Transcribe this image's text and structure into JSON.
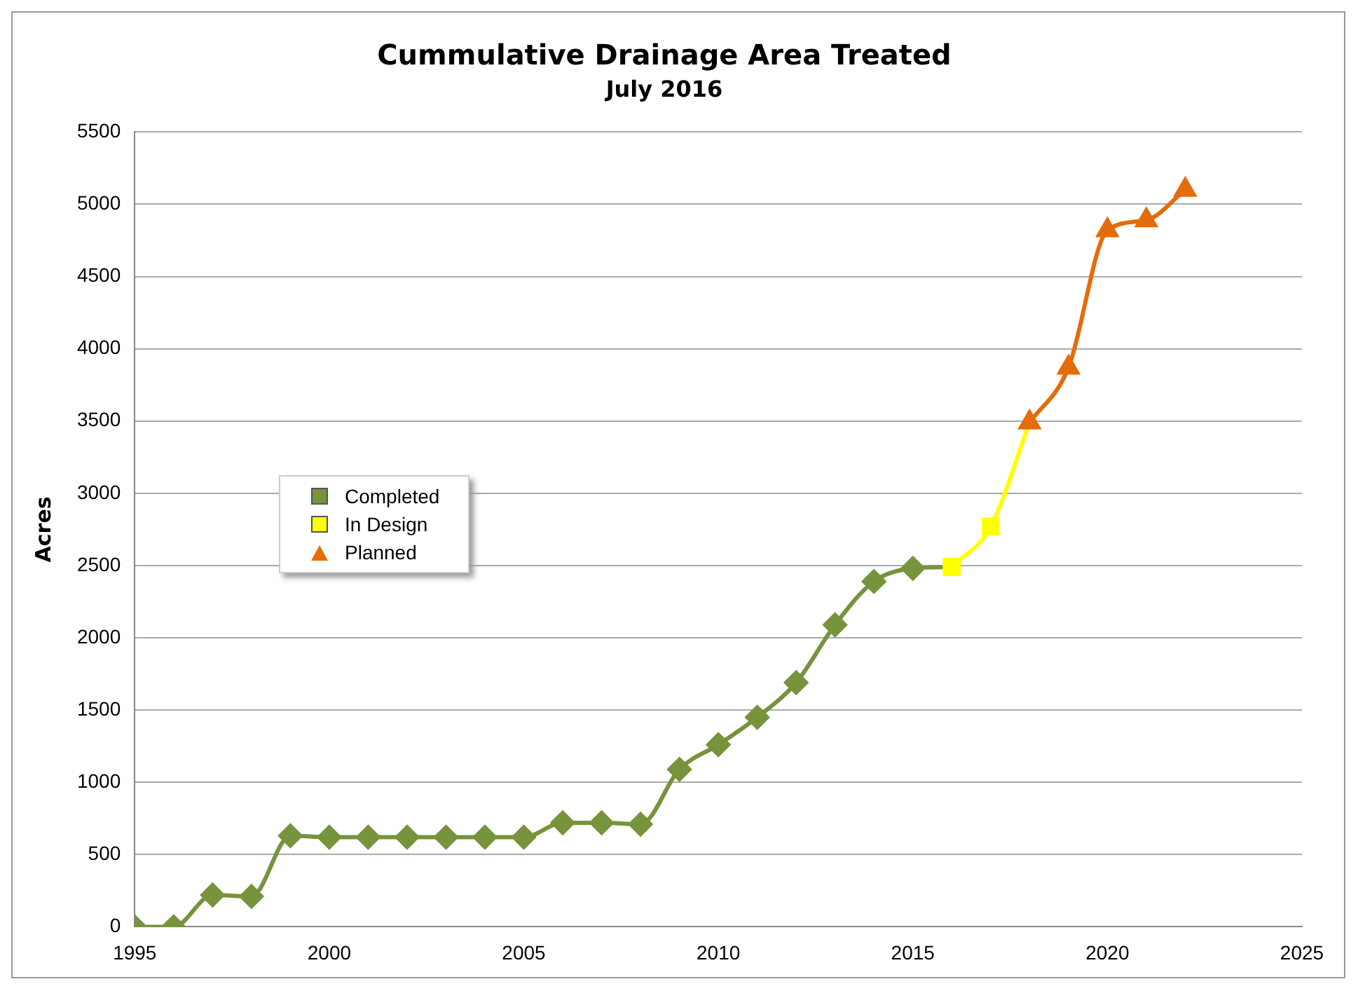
{
  "chart_data": {
    "type": "line",
    "title": "Cummulative Drainage Area Treated",
    "subtitle": "July 2016",
    "ylabel": "Acres",
    "xlim": [
      1995,
      2025
    ],
    "xticks": [
      1995,
      2000,
      2005,
      2010,
      2015,
      2020,
      2025
    ],
    "ylim": [
      0,
      5500
    ],
    "yticks": [
      0,
      500,
      1000,
      1500,
      2000,
      2500,
      3000,
      3500,
      4000,
      4500,
      5000,
      5500
    ],
    "grid": "y",
    "legend": "left",
    "series": [
      {
        "name": "Completed",
        "color": "#77933c",
        "marker": "diamond",
        "x": [
          1995,
          1996,
          1997,
          1998,
          1999,
          2000,
          2001,
          2002,
          2003,
          2004,
          2005,
          2006,
          2007,
          2008,
          2009,
          2010,
          2011,
          2012,
          2013,
          2014,
          2015,
          2016
        ],
        "values": [
          0,
          0,
          220,
          210,
          630,
          620,
          620,
          620,
          620,
          620,
          620,
          720,
          720,
          710,
          1090,
          1260,
          1450,
          1690,
          2090,
          2390,
          2480,
          2490
        ]
      },
      {
        "name": "In Design",
        "color": "#ffff00",
        "marker": "square",
        "x": [
          2016,
          2017,
          2018
        ],
        "values": [
          2490,
          2770,
          3490
        ]
      },
      {
        "name": "Planned",
        "color": "#e46c0a",
        "marker": "triangle",
        "x": [
          2018,
          2019,
          2020,
          2021,
          2022
        ],
        "values": [
          3490,
          3870,
          4820,
          4890,
          5100
        ]
      }
    ]
  }
}
